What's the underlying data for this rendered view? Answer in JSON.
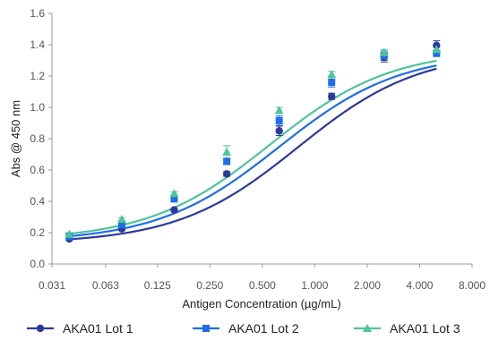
{
  "chart_data": {
    "type": "scatter",
    "title": "",
    "xlabel": "Antigen Concentration (µg/mL)",
    "ylabel": "Abs @ 450 nm",
    "x_scale": "log2",
    "xlim": [
      0.031,
      8.0
    ],
    "ylim": [
      0.0,
      1.6
    ],
    "x_ticks": [
      "0.031",
      "0.063",
      "0.125",
      "0.250",
      "0.500",
      "1.000",
      "2.000",
      "4.000",
      "8.000"
    ],
    "y_ticks": [
      "0.0",
      "0.2",
      "0.4",
      "0.6",
      "0.8",
      "1.0",
      "1.2",
      "1.4",
      "1.6"
    ],
    "grid": false,
    "legend_position": "bottom",
    "series": [
      {
        "name": "AKA01  Lot 1",
        "color": "#2b3a9c",
        "marker": "circle",
        "x": [
          0.039,
          0.078,
          0.156,
          0.3125,
          0.625,
          1.25,
          2.5,
          5.0
        ],
        "y": [
          0.16,
          0.225,
          0.345,
          0.575,
          0.85,
          1.07,
          1.32,
          1.395
        ],
        "err": [
          0.01,
          0.01,
          0.01,
          0.015,
          0.03,
          0.02,
          0.03,
          0.03
        ],
        "fit": {
          "bottom": 0.13,
          "top": 1.36,
          "ec50": 0.8,
          "hill": 1.25
        }
      },
      {
        "name": "AKA01 Lot 2",
        "color": "#1f6ee8",
        "marker": "square",
        "x": [
          0.039,
          0.078,
          0.156,
          0.3125,
          0.625,
          1.25,
          2.5,
          5.0
        ],
        "y": [
          0.175,
          0.25,
          0.415,
          0.655,
          0.915,
          1.16,
          1.33,
          1.345
        ],
        "err": [
          0.01,
          0.01,
          0.01,
          0.02,
          0.03,
          0.03,
          0.03,
          0.02
        ],
        "fit": {
          "bottom": 0.14,
          "top": 1.35,
          "ec50": 0.62,
          "hill": 1.25
        }
      },
      {
        "name": "AKA01 Lot 3",
        "color": "#4ec49a",
        "marker": "triangle",
        "x": [
          0.039,
          0.078,
          0.156,
          0.3125,
          0.625,
          1.25,
          2.5,
          5.0
        ],
        "y": [
          0.19,
          0.285,
          0.45,
          0.715,
          0.98,
          1.21,
          1.35,
          1.37
        ],
        "err": [
          0.01,
          0.01,
          0.01,
          0.04,
          0.02,
          0.02,
          0.02,
          0.02
        ],
        "fit": {
          "bottom": 0.15,
          "top": 1.37,
          "ec50": 0.55,
          "hill": 1.25
        }
      }
    ]
  }
}
